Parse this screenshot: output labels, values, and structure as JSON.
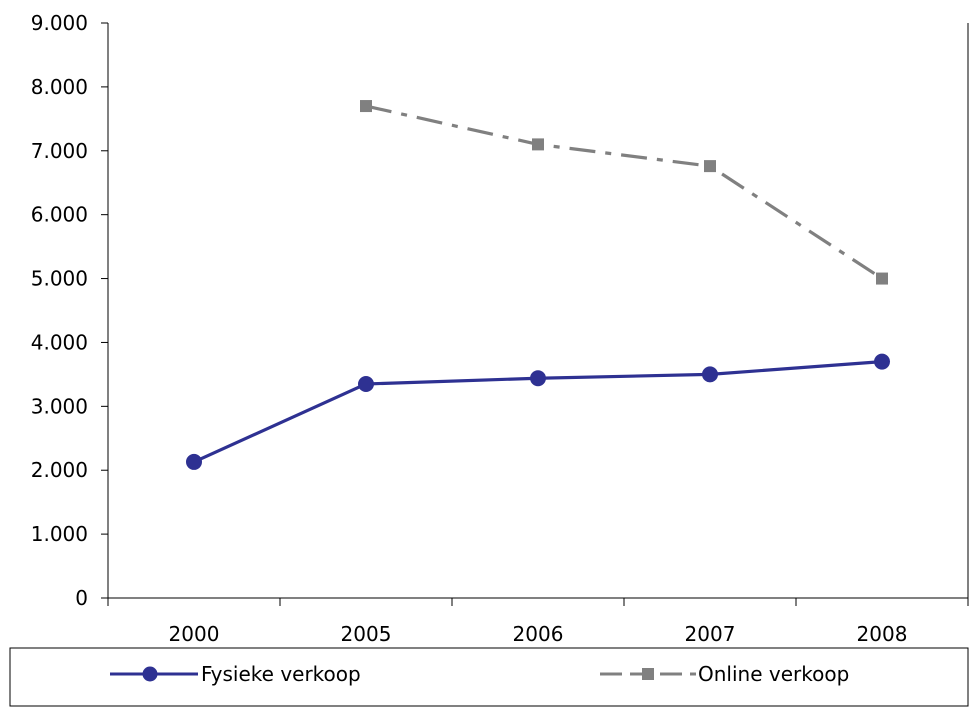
{
  "chart_data": {
    "type": "line",
    "categories": [
      "2000",
      "2005",
      "2006",
      "2007",
      "2008"
    ],
    "ylim": [
      0,
      9000
    ],
    "ytick_values": [
      0,
      1000,
      2000,
      3000,
      4000,
      5000,
      6000,
      7000,
      8000,
      9000
    ],
    "ytick_labels": [
      "0",
      "1.000",
      "2.000",
      "3.000",
      "4.000",
      "5.000",
      "6.000",
      "7.000",
      "8.000",
      "9.000"
    ],
    "grid": false,
    "legend_position": "bottom",
    "series": [
      {
        "name": "Fysieke verkoop",
        "values": [
          2130,
          3350,
          3440,
          3500,
          3700
        ],
        "color": "#2e3192",
        "marker": "circle",
        "line_style": "solid"
      },
      {
        "name": "Online verkoop",
        "values": [
          null,
          7700,
          7100,
          6760,
          5000
        ],
        "color": "#808080",
        "marker": "square",
        "line_style": "dash-dot"
      }
    ]
  }
}
